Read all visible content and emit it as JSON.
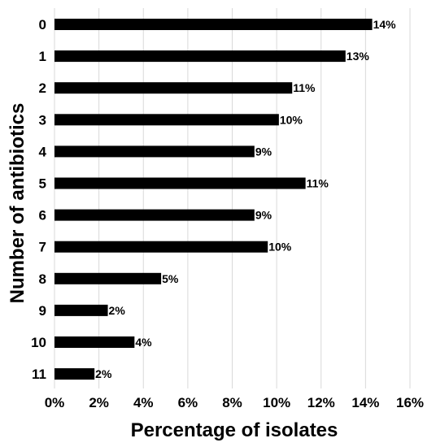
{
  "chart_data": {
    "type": "bar",
    "orientation": "horizontal",
    "title": "",
    "xlabel": "Percentage of isolates",
    "ylabel": "Number of antibiotics",
    "categories": [
      "0",
      "1",
      "2",
      "3",
      "4",
      "5",
      "6",
      "7",
      "8",
      "9",
      "10",
      "11"
    ],
    "values": [
      14.3,
      13.1,
      10.7,
      10.1,
      9.0,
      11.3,
      9.0,
      9.6,
      4.8,
      2.4,
      3.6,
      1.8
    ],
    "value_labels": [
      "14%",
      "13%",
      "11%",
      "10%",
      "9%",
      "11%",
      "9%",
      "10%",
      "5%",
      "2%",
      "4%",
      "2%"
    ],
    "xlim": [
      0,
      16
    ],
    "xticks": [
      0,
      2,
      4,
      6,
      8,
      10,
      12,
      14,
      16
    ],
    "xtick_labels": [
      "0%",
      "2%",
      "4%",
      "6%",
      "8%",
      "10%",
      "12%",
      "14%",
      "16%"
    ],
    "grid": "vertical",
    "legend": "none",
    "bar_color": "#000000",
    "grid_color": "#d9d9d9"
  }
}
